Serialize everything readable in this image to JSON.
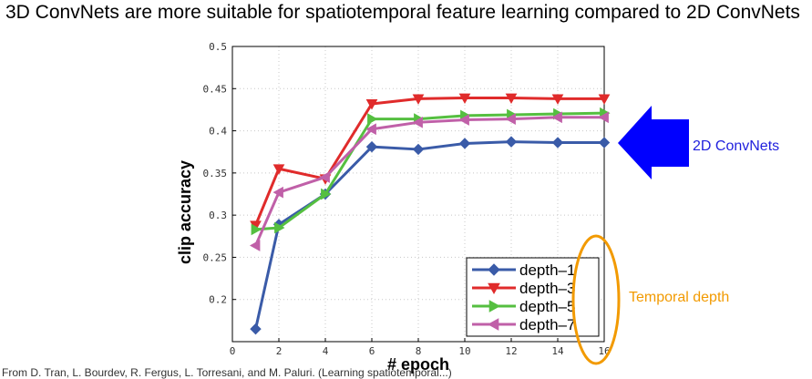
{
  "slide": {
    "title": "3D ConvNets are more suitable for spatiotemporal feature learning compared to 2D ConvNets",
    "callout_2d": "2D ConvNets",
    "callout_temporal": "Temporal depth",
    "callout_arrow_color": "#0000ff",
    "callout_2d_color": "#1f1fdd",
    "callout_temporal_color": "#f29a00",
    "ellipse_color": "#f29a00"
  },
  "chart_data": {
    "type": "line",
    "xlabel": "# epoch",
    "ylabel": "clip accuracy",
    "xlim": [
      0,
      16
    ],
    "ylim": [
      0.15,
      0.5
    ],
    "xticks": [
      0,
      2,
      4,
      6,
      8,
      10,
      12,
      14,
      16
    ],
    "yticks": [
      0.2,
      0.25,
      0.3,
      0.35,
      0.4,
      0.45,
      0.5
    ],
    "xtick_labels": [
      "0",
      "2",
      "4",
      "6",
      "8",
      "10",
      "12",
      "14",
      "16"
    ],
    "ytick_labels": [
      "0.2",
      "0.25",
      "0.3",
      "0.35",
      "0.4",
      "0.45",
      "0.5"
    ],
    "grid": true,
    "legend_position": "bottom-right",
    "x": [
      1,
      2,
      4,
      6,
      8,
      10,
      12,
      14,
      16
    ],
    "series": [
      {
        "name": "depth–1",
        "color": "#3a5ba8",
        "marker": "diamond",
        "values": [
          0.165,
          0.289,
          0.325,
          0.381,
          0.378,
          0.385,
          0.387,
          0.386,
          0.386
        ]
      },
      {
        "name": "depth–3",
        "color": "#e02b2b",
        "marker": "triangle-down",
        "values": [
          0.288,
          0.355,
          0.343,
          0.432,
          0.438,
          0.439,
          0.439,
          0.438,
          0.438
        ]
      },
      {
        "name": "depth–5",
        "color": "#55bf40",
        "marker": "triangle-right",
        "values": [
          0.283,
          0.285,
          0.325,
          0.414,
          0.414,
          0.418,
          0.419,
          0.42,
          0.421
        ]
      },
      {
        "name": "depth–7",
        "color": "#c060a8",
        "marker": "triangle-left",
        "values": [
          0.264,
          0.327,
          0.345,
          0.402,
          0.41,
          0.413,
          0.414,
          0.416,
          0.416
        ]
      }
    ]
  },
  "footer": {
    "text": "From D. Tran, L. Bourdev, R. Fergus, L. Torresani, and M. Paluri. (Learning spatiotemporal...)"
  }
}
